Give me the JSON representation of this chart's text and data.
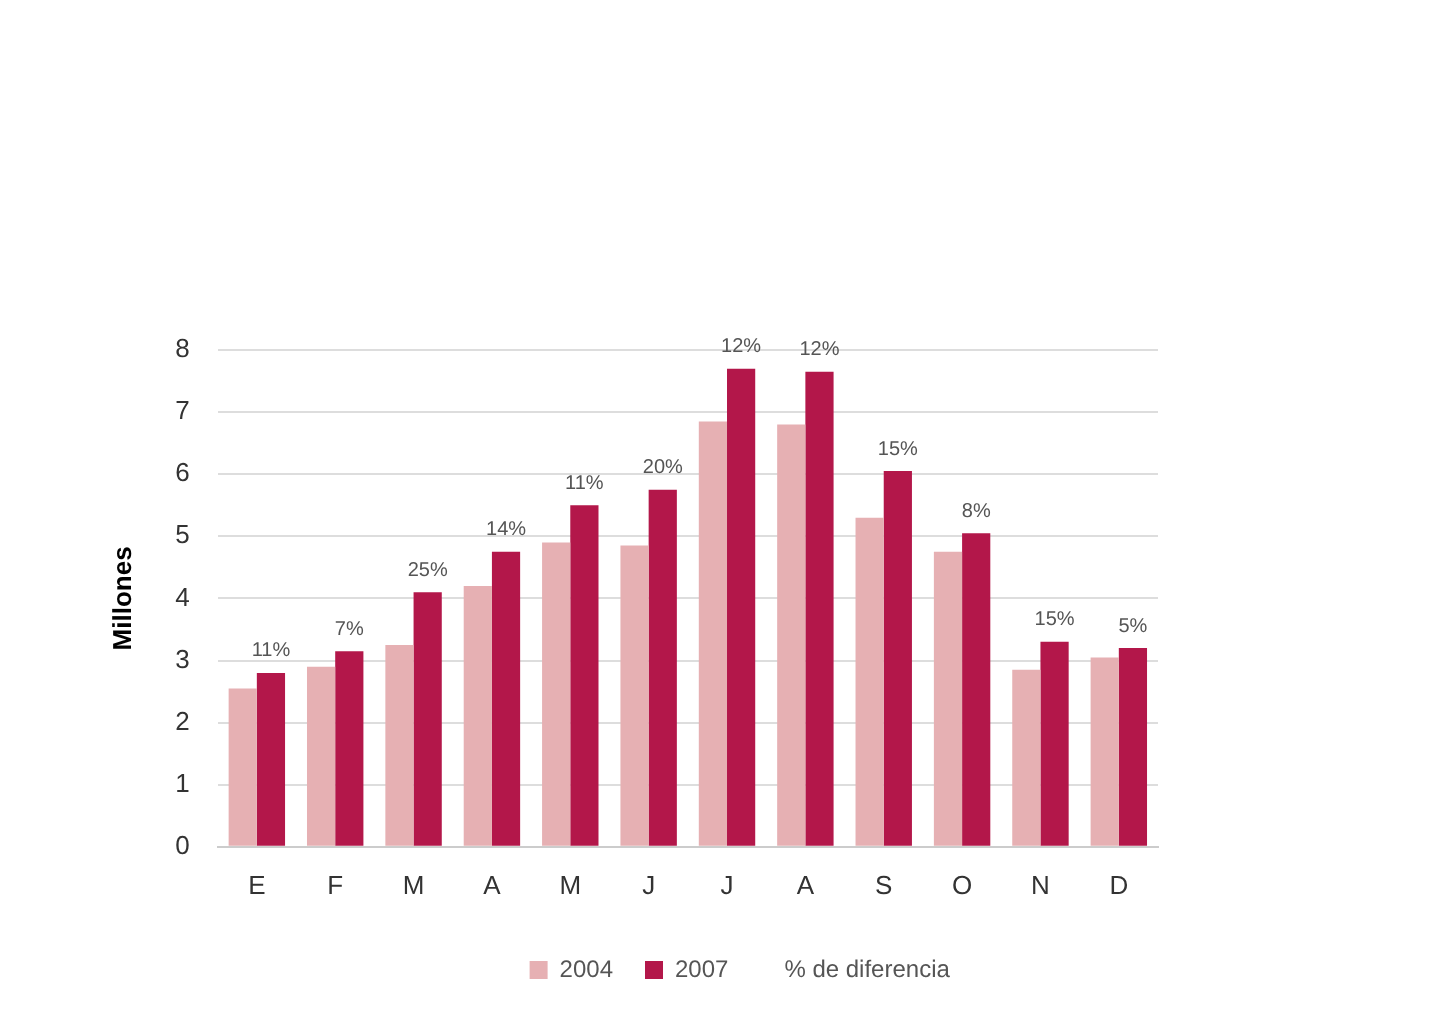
{
  "chart_data": {
    "type": "bar",
    "ylabel": "Millones",
    "categories": [
      "E",
      "F",
      "M",
      "A",
      "M",
      "J",
      "J",
      "A",
      "S",
      "O",
      "N",
      "D"
    ],
    "series": [
      {
        "name": "2004",
        "color": "#e6b0b3",
        "values": [
          2.55,
          2.9,
          3.25,
          4.2,
          4.9,
          4.85,
          6.85,
          6.8,
          5.3,
          4.75,
          2.85,
          3.05
        ]
      },
      {
        "name": "2007",
        "color": "#b3174a",
        "values": [
          2.8,
          3.15,
          4.1,
          4.75,
          5.5,
          5.75,
          7.7,
          7.65,
          6.05,
          5.05,
          3.3,
          3.2
        ]
      }
    ],
    "ylim": [
      0,
      8
    ],
    "yticks": [
      0,
      1,
      2,
      3,
      4,
      5,
      6,
      7,
      8
    ],
    "grid": "y",
    "legend": "bottom",
    "annotations": [
      "11%",
      "7%",
      "25%",
      "14%",
      "11%",
      "20%",
      "12%",
      "12%",
      "15%",
      "8%",
      "15%",
      "5%",
      "% de diferencia"
    ]
  }
}
